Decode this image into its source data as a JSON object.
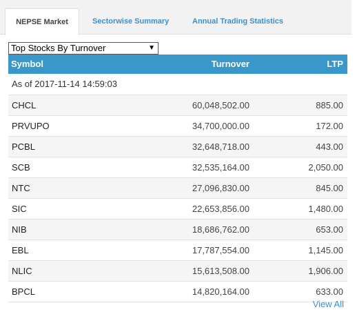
{
  "tabs": [
    {
      "label": "NEPSE Market",
      "active": true
    },
    {
      "label": "Sectorwise Summary",
      "active": false
    },
    {
      "label": "Annual Trading Statistics",
      "active": false
    }
  ],
  "dropdown": {
    "selected": "Top Stocks By Turnover"
  },
  "table": {
    "headers": {
      "symbol": "Symbol",
      "turnover": "Turnover",
      "ltp": "LTP"
    },
    "as_of": "As of 2017-11-14 14:59:03",
    "rows": [
      {
        "symbol": "CHCL",
        "turnover": "60,048,502.00",
        "ltp": "885.00"
      },
      {
        "symbol": "PRVUPO",
        "turnover": "34,700,000.00",
        "ltp": "172.00"
      },
      {
        "symbol": "PCBL",
        "turnover": "32,648,718.00",
        "ltp": "443.00"
      },
      {
        "symbol": "SCB",
        "turnover": "32,535,164.00",
        "ltp": "2,050.00"
      },
      {
        "symbol": "NTC",
        "turnover": "27,096,830.00",
        "ltp": "845.00"
      },
      {
        "symbol": "SIC",
        "turnover": "22,653,856.00",
        "ltp": "1,480.00"
      },
      {
        "symbol": "NIB",
        "turnover": "18,686,762.00",
        "ltp": "653.00"
      },
      {
        "symbol": "EBL",
        "turnover": "17,787,554.00",
        "ltp": "1,145.00"
      },
      {
        "symbol": "NLIC",
        "turnover": "15,613,508.00",
        "ltp": "1,906.00"
      },
      {
        "symbol": "BPCL",
        "turnover": "14,820,164.00",
        "ltp": "633.00"
      }
    ]
  },
  "view_all_label": "View All",
  "colors": {
    "accent": "#3a97c9",
    "link": "#3a8fd0"
  }
}
